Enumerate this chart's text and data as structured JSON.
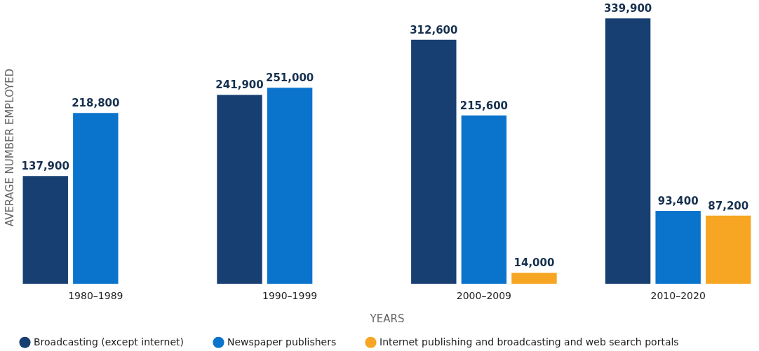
{
  "chart_data": {
    "type": "bar",
    "xlabel": "YEARS",
    "ylabel": "AVERAGE NUMBER EMPLOYED",
    "categories": [
      "1980–1989",
      "1990–1999",
      "2000–2009",
      "2010–2020"
    ],
    "series": [
      {
        "name": "Broadcasting (except internet)",
        "color": "#173f72",
        "values": [
          137900,
          241900,
          312600,
          339900
        ],
        "value_labels": [
          "137,900",
          "241,900",
          "312,600",
          "339,900"
        ]
      },
      {
        "name": "Newspaper publishers",
        "color": "#0a74cd",
        "values": [
          218800,
          251000,
          215600,
          93400
        ],
        "value_labels": [
          "218,800",
          "251,000",
          "215,600",
          "93,400"
        ]
      },
      {
        "name": "Internet publishing and broadcasting and web search portals",
        "color": "#f6a623",
        "values": [
          null,
          null,
          14000,
          87200
        ],
        "value_labels": [
          null,
          null,
          "14,000",
          "87,200"
        ]
      }
    ],
    "grid": false,
    "legend": "bottom"
  }
}
